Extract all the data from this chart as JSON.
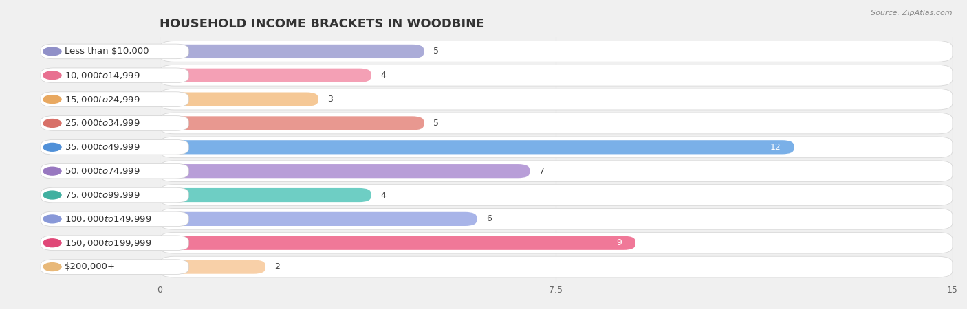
{
  "title": "HOUSEHOLD INCOME BRACKETS IN WOODBINE",
  "source": "Source: ZipAtlas.com",
  "categories": [
    "Less than $10,000",
    "$10,000 to $14,999",
    "$15,000 to $24,999",
    "$25,000 to $34,999",
    "$35,000 to $49,999",
    "$50,000 to $74,999",
    "$75,000 to $99,999",
    "$100,000 to $149,999",
    "$150,000 to $199,999",
    "$200,000+"
  ],
  "values": [
    5,
    4,
    3,
    5,
    12,
    7,
    4,
    6,
    9,
    2
  ],
  "bar_colors": [
    "#abacd8",
    "#f4a0b5",
    "#f5c896",
    "#e89890",
    "#7ab0e8",
    "#b89ed8",
    "#6ecec4",
    "#a8b4e8",
    "#f07898",
    "#f8d0a8"
  ],
  "dot_colors": [
    "#9090c8",
    "#e87090",
    "#e8a860",
    "#d87068",
    "#5090d8",
    "#9878c0",
    "#40b0a0",
    "#8898d8",
    "#e04878",
    "#e8b878"
  ],
  "xlim": [
    0,
    15
  ],
  "xticks": [
    0,
    7.5,
    15
  ],
  "background_color": "#f0f0f0",
  "row_bg_color": "#ffffff",
  "title_fontsize": 13,
  "label_fontsize": 9.5,
  "value_fontsize": 9,
  "bar_height": 0.58
}
